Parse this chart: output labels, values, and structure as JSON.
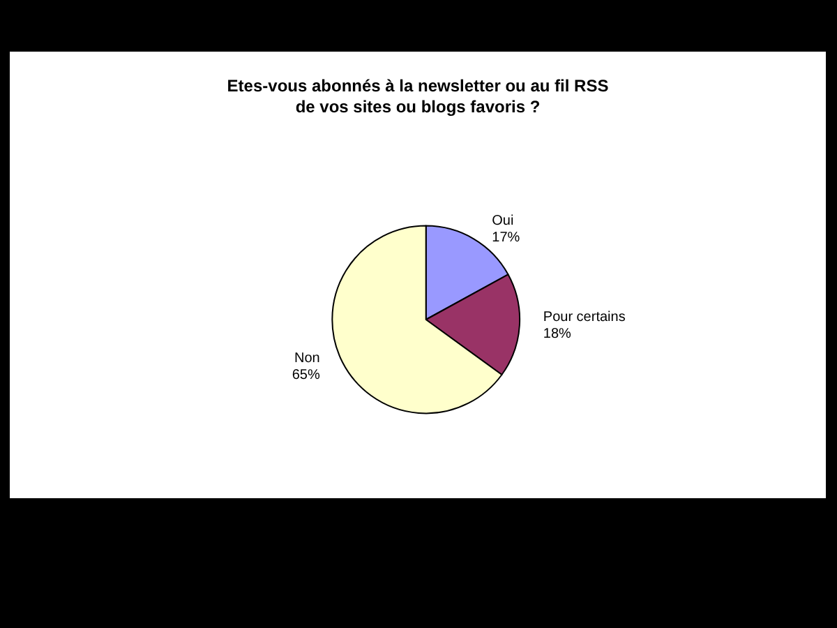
{
  "chart_data": {
    "type": "pie",
    "title": "Etes-vous abonnés à la newsletter ou au fil RSS\nde vos sites ou blogs favoris ?",
    "categories": [
      "Oui",
      "Pour certains",
      "Non"
    ],
    "values": [
      17,
      18,
      65
    ],
    "colors": [
      "#9999ff",
      "#993366",
      "#ffffcc"
    ],
    "value_labels": [
      "17%",
      "18%",
      "65%"
    ],
    "legend": false
  }
}
